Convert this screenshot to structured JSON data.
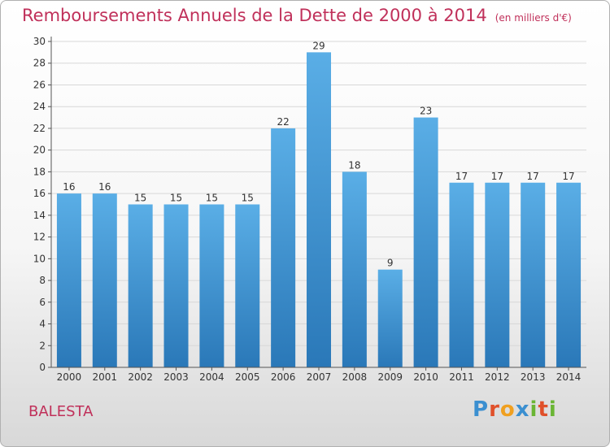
{
  "title": "Remboursements Annuels de la Dette de 2000 à 2014",
  "subtitle": "(en milliers d'€)",
  "commune": "BALESTA",
  "logo": {
    "text": "Proxiti",
    "letters": [
      {
        "ch": "P",
        "color": "#3b8fd0"
      },
      {
        "ch": "r",
        "color": "#e0502a"
      },
      {
        "ch": "o",
        "color": "#f0a020"
      },
      {
        "ch": "x",
        "color": "#3b8fd0"
      },
      {
        "ch": "i",
        "color": "#6ab534"
      },
      {
        "ch": "t",
        "color": "#e0502a"
      },
      {
        "ch": "i",
        "color": "#6ab534"
      }
    ]
  },
  "colors": {
    "title": "#c0305a",
    "bar_top": "#5aaee6",
    "bar_bottom": "#2a78b8",
    "axis": "#555555",
    "grid": "#d8d8d8"
  },
  "chart_data": {
    "type": "bar",
    "categories": [
      "2000",
      "2001",
      "2002",
      "2003",
      "2004",
      "2005",
      "2006",
      "2007",
      "2008",
      "2009",
      "2010",
      "2011",
      "2012",
      "2013",
      "2014"
    ],
    "values": [
      16,
      16,
      15,
      15,
      15,
      15,
      22,
      29,
      18,
      9,
      23,
      17,
      17,
      17,
      17
    ],
    "title": "Remboursements Annuels de la Dette de 2000 à 2014",
    "ylim": [
      0,
      30
    ],
    "yticks": [
      0,
      2,
      4,
      6,
      8,
      10,
      12,
      14,
      16,
      18,
      20,
      22,
      24,
      26,
      28,
      30
    ],
    "grid": true
  }
}
